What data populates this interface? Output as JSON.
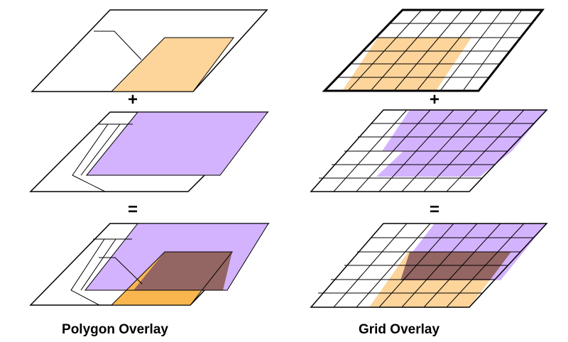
{
  "operators": {
    "plus": "+",
    "equals": "="
  },
  "captions": {
    "polygon": "Polygon Overlay",
    "grid": "Grid Overlay"
  },
  "colors": {
    "orange": "#fdd49a",
    "orange_result": "#f9b54e",
    "purple": "#d3b3fe",
    "overlap": "#936563",
    "outline": "#000000",
    "background": "#ffffff"
  }
}
